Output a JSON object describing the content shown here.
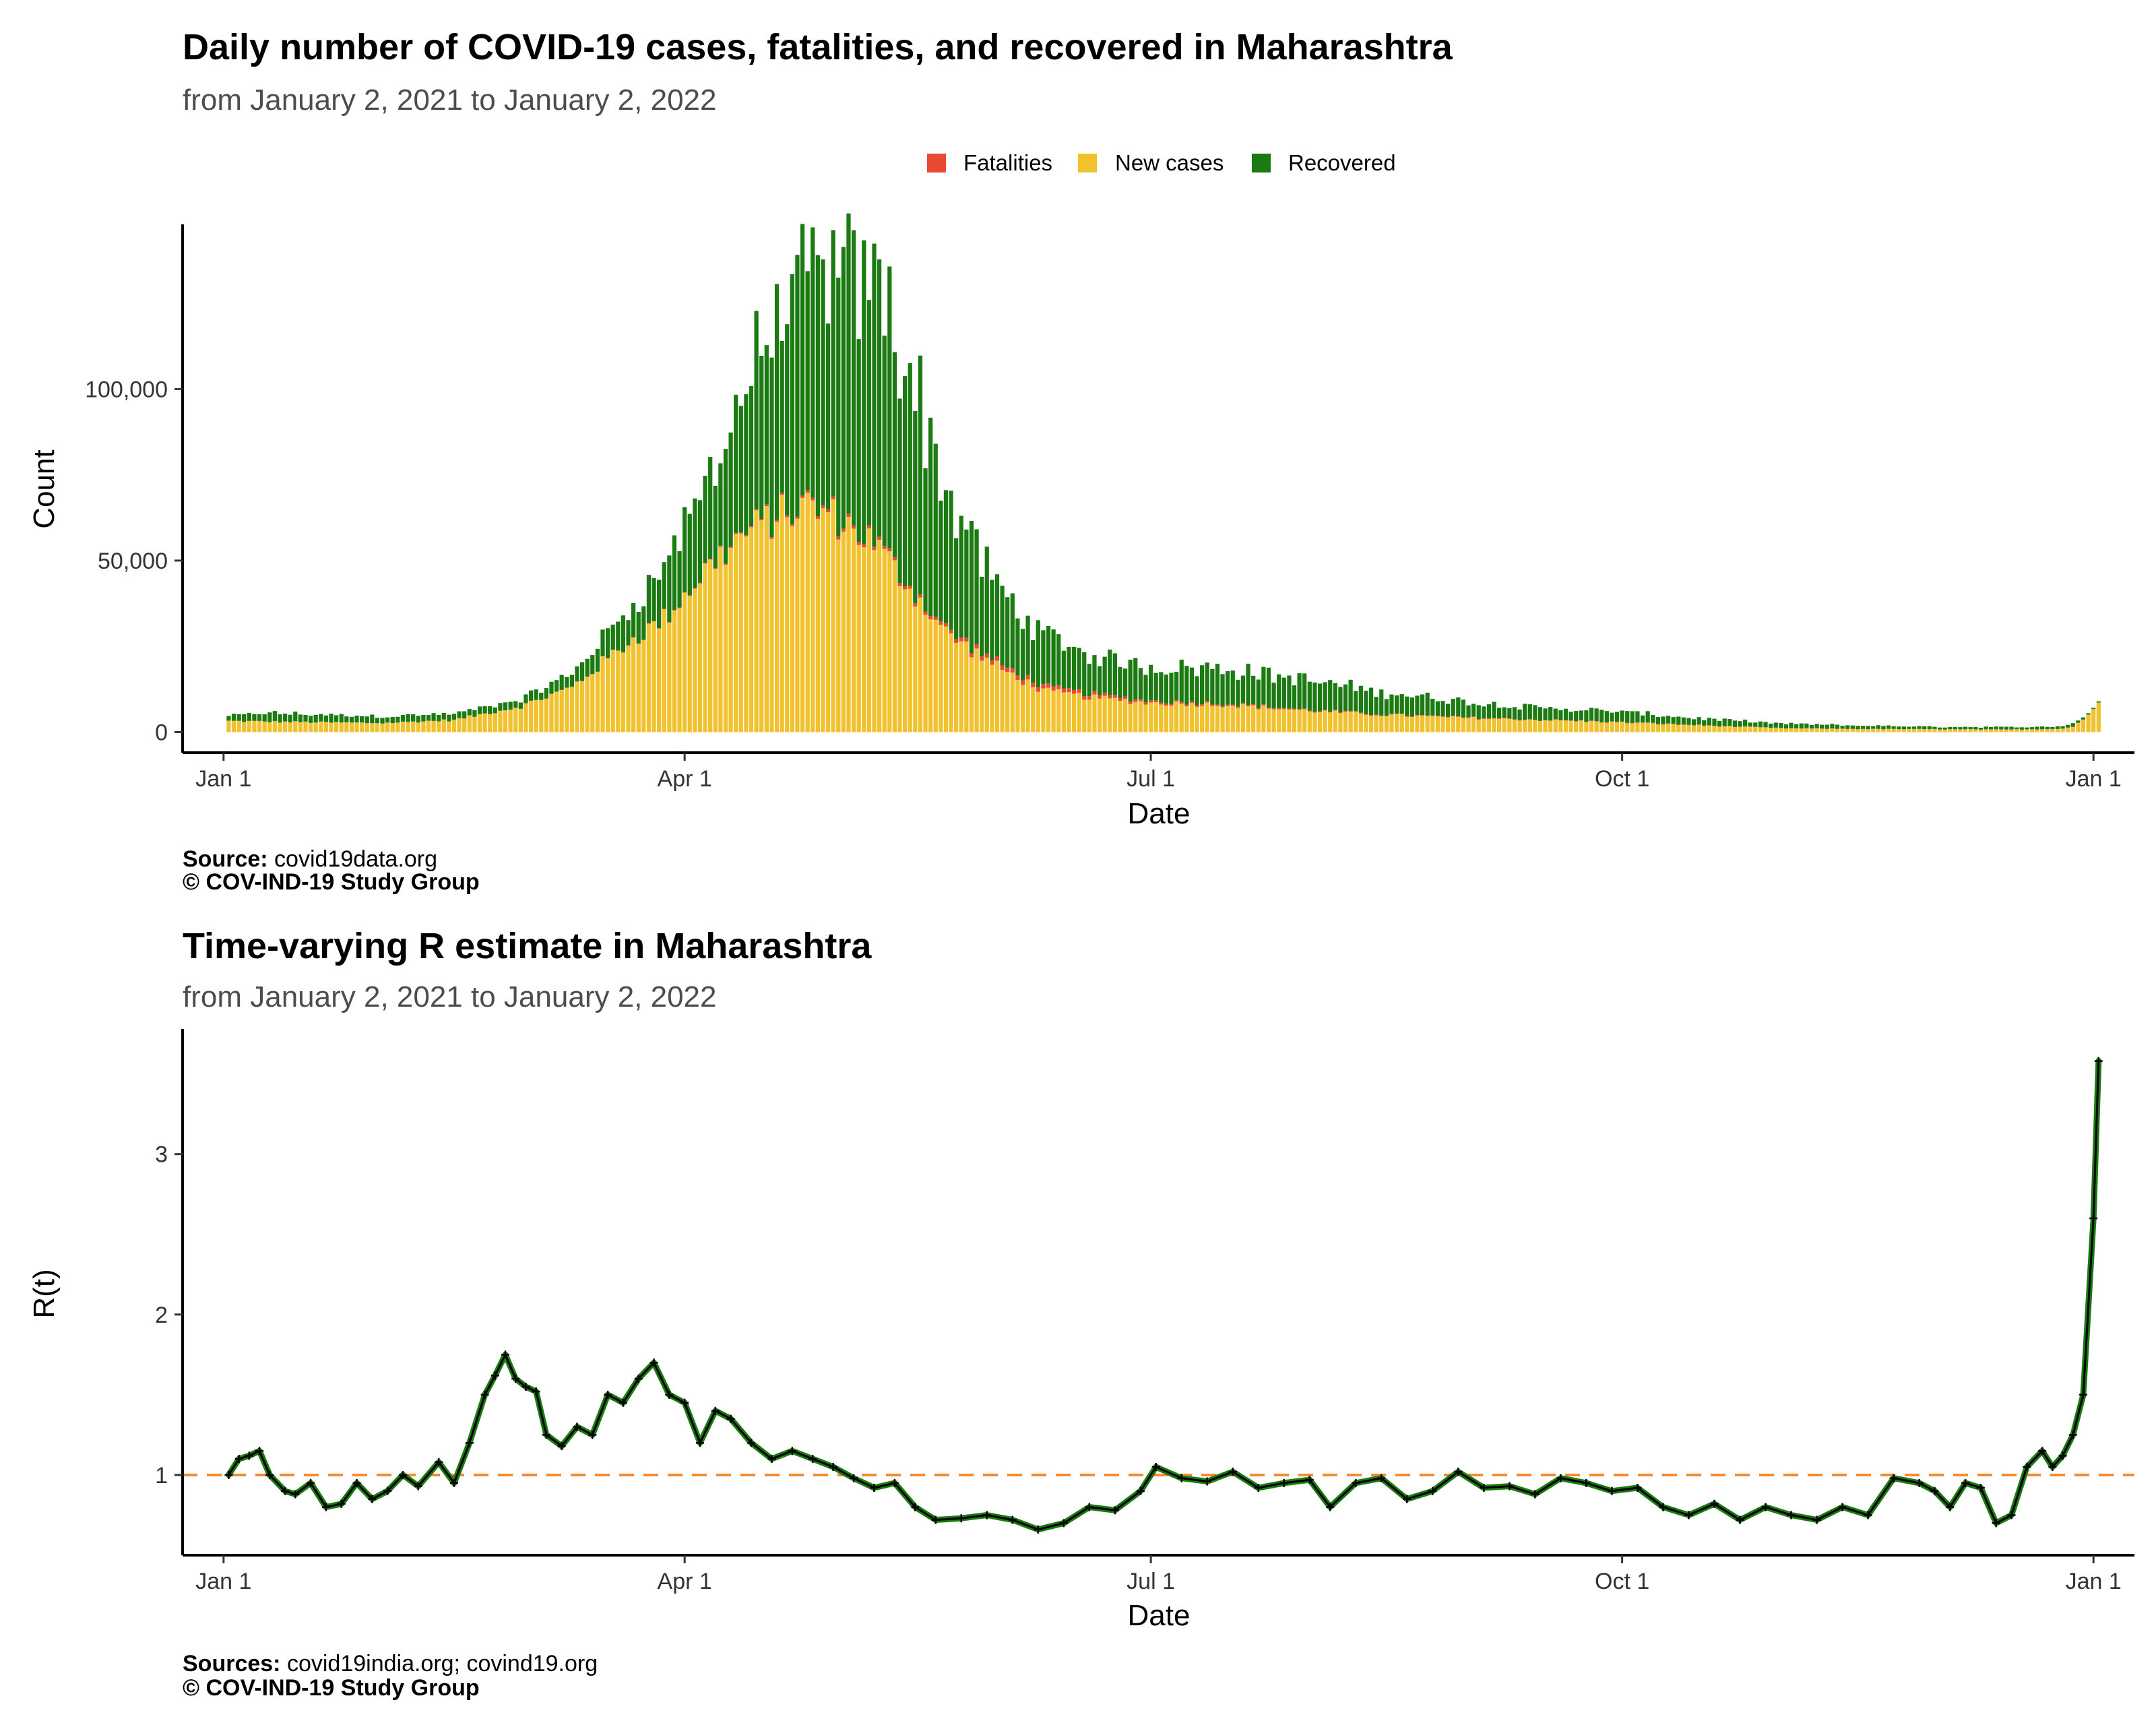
{
  "charts": {
    "cases": {
      "title": "Daily number of COVID-19 cases, fatalities, and recovered in Maharashtra",
      "subtitle": "from January  2, 2021 to January  2, 2022",
      "legend": [
        "Fatalities",
        "New cases",
        "Recovered"
      ],
      "ylabel": "Count",
      "xlabel": "Date",
      "yticks": [
        "0",
        "50,000",
        "100,000"
      ],
      "xticks": [
        "Jan  1",
        "Apr  1",
        "Jul  1",
        "Oct  1",
        "Jan  1"
      ],
      "source_label": "Source:",
      "source_text": " covid19data.org",
      "copyright": "© COV-IND-19 Study Group"
    },
    "r": {
      "title": "Time-varying R estimate in Maharashtra",
      "subtitle": "from January  2, 2021 to January  2, 2022",
      "ylabel": "R(t)",
      "xlabel": "Date",
      "yticks": [
        "1",
        "2",
        "3"
      ],
      "xticks": [
        "Jan  1",
        "Apr  1",
        "Jul  1",
        "Oct  1",
        "Jan  1"
      ],
      "source_label": "Sources:",
      "source_text": " covid19india.org; covind19.org",
      "copyright": "© COV-IND-19 Study Group"
    }
  },
  "colors": {
    "fatalities": "#e84a33",
    "new_cases": "#f2c12e",
    "recovered": "#1b7a12",
    "r_line": "#1b7a12",
    "reference": "#f58a2e"
  },
  "chart_data": [
    {
      "type": "bar",
      "stacked": true,
      "title": "Daily number of COVID-19 cases, fatalities, and recovered in Maharashtra",
      "subtitle": "from January  2, 2021 to January  2, 2022",
      "xlabel": "Date",
      "ylabel": "Count",
      "x_range": [
        "2020-12-24",
        "2022-01-09"
      ],
      "ylim": [
        -6000,
        148000
      ],
      "legend_position": "top",
      "series_names": [
        "Fatalities",
        "New cases",
        "Recovered"
      ],
      "anchors": {
        "x": [
          "2021-01-02",
          "2021-01-10",
          "2021-01-20",
          "2021-02-01",
          "2021-02-15",
          "2021-02-28",
          "2021-03-10",
          "2021-03-20",
          "2021-03-28",
          "2021-04-01",
          "2021-04-05",
          "2021-04-12",
          "2021-04-18",
          "2021-04-25",
          "2021-05-01",
          "2021-05-08",
          "2021-05-15",
          "2021-05-22",
          "2021-06-01",
          "2021-06-10",
          "2021-06-20",
          "2021-07-01",
          "2021-07-15",
          "2021-08-01",
          "2021-08-15",
          "2021-09-01",
          "2021-09-15",
          "2021-10-01",
          "2021-10-15",
          "2021-11-01",
          "2021-11-15",
          "2021-12-01",
          "2021-12-15",
          "2021-12-25",
          "2021-12-28",
          "2021-12-31",
          "2022-01-02"
        ],
        "new_cases": [
          3200,
          3000,
          2800,
          2600,
          3500,
          7500,
          13000,
          25000,
          33000,
          40000,
          47000,
          57000,
          62000,
          66000,
          62000,
          55000,
          42000,
          29000,
          19000,
          12000,
          10000,
          8500,
          8000,
          6200,
          5000,
          4100,
          3500,
          2800,
          2000,
          1100,
          900,
          800,
          700,
          900,
          1500,
          5000,
          9000
        ],
        "recovered": [
          1500,
          2500,
          2200,
          2000,
          1800,
          2000,
          4000,
          9000,
          15000,
          20000,
          25000,
          40000,
          55000,
          65000,
          70000,
          75000,
          65000,
          40000,
          22000,
          15000,
          11000,
          10000,
          10500,
          8500,
          6500,
          4500,
          3500,
          3000,
          2000,
          1300,
          1000,
          700,
          700,
          700,
          1000,
          400,
          300
        ],
        "fatalities": [
          50,
          50,
          40,
          30,
          30,
          40,
          60,
          100,
          150,
          200,
          250,
          300,
          500,
          700,
          900,
          900,
          900,
          1000,
          1300,
          1300,
          1000,
          600,
          400,
          250,
          200,
          150,
          120,
          100,
          80,
          60,
          40,
          30,
          30,
          25,
          20,
          20,
          10
        ]
      }
    },
    {
      "type": "line",
      "title": "Time-varying R estimate in Maharashtra",
      "subtitle": "from January  2, 2021 to January  2, 2022",
      "xlabel": "Date",
      "ylabel": "R(t)",
      "x_range": [
        "2020-12-24",
        "2022-01-09"
      ],
      "ylim": [
        0.5,
        3.78
      ],
      "reference_line": 1,
      "points": {
        "x": [
          "2021-01-02",
          "2021-01-04",
          "2021-01-06",
          "2021-01-08",
          "2021-01-10",
          "2021-01-13",
          "2021-01-15",
          "2021-01-18",
          "2021-01-21",
          "2021-01-24",
          "2021-01-27",
          "2021-01-30",
          "2021-02-02",
          "2021-02-05",
          "2021-02-08",
          "2021-02-12",
          "2021-02-15",
          "2021-02-18",
          "2021-02-21",
          "2021-02-23",
          "2021-02-25",
          "2021-02-27",
          "2021-03-01",
          "2021-03-03",
          "2021-03-05",
          "2021-03-08",
          "2021-03-11",
          "2021-03-14",
          "2021-03-17",
          "2021-03-20",
          "2021-03-23",
          "2021-03-26",
          "2021-03-29",
          "2021-04-01",
          "2021-04-04",
          "2021-04-07",
          "2021-04-10",
          "2021-04-14",
          "2021-04-18",
          "2021-04-22",
          "2021-04-26",
          "2021-04-30",
          "2021-05-04",
          "2021-05-08",
          "2021-05-12",
          "2021-05-16",
          "2021-05-20",
          "2021-05-25",
          "2021-05-30",
          "2021-06-04",
          "2021-06-09",
          "2021-06-14",
          "2021-06-19",
          "2021-06-24",
          "2021-06-29",
          "2021-07-02",
          "2021-07-07",
          "2021-07-12",
          "2021-07-17",
          "2021-07-22",
          "2021-07-27",
          "2021-08-01",
          "2021-08-05",
          "2021-08-10",
          "2021-08-15",
          "2021-08-20",
          "2021-08-25",
          "2021-08-30",
          "2021-09-04",
          "2021-09-09",
          "2021-09-14",
          "2021-09-19",
          "2021-09-24",
          "2021-09-29",
          "2021-10-04",
          "2021-10-09",
          "2021-10-14",
          "2021-10-19",
          "2021-10-24",
          "2021-10-29",
          "2021-11-03",
          "2021-11-08",
          "2021-11-13",
          "2021-11-18",
          "2021-11-23",
          "2021-11-28",
          "2021-12-01",
          "2021-12-04",
          "2021-12-07",
          "2021-12-10",
          "2021-12-13",
          "2021-12-16",
          "2021-12-19",
          "2021-12-22",
          "2021-12-24",
          "2021-12-26",
          "2021-12-28",
          "2021-12-30",
          "2022-01-01",
          "2022-01-02"
        ],
        "r": [
          1.0,
          1.1,
          1.12,
          1.15,
          1.0,
          0.9,
          0.88,
          0.95,
          0.8,
          0.82,
          0.95,
          0.85,
          0.9,
          1.0,
          0.93,
          1.08,
          0.95,
          1.2,
          1.5,
          1.62,
          1.75,
          1.6,
          1.55,
          1.52,
          1.25,
          1.18,
          1.3,
          1.25,
          1.5,
          1.45,
          1.6,
          1.7,
          1.5,
          1.45,
          1.2,
          1.4,
          1.35,
          1.2,
          1.1,
          1.15,
          1.1,
          1.05,
          0.98,
          0.92,
          0.95,
          0.8,
          0.72,
          0.73,
          0.75,
          0.72,
          0.66,
          0.7,
          0.8,
          0.78,
          0.9,
          1.05,
          0.98,
          0.96,
          1.02,
          0.92,
          0.95,
          0.97,
          0.8,
          0.95,
          0.98,
          0.85,
          0.9,
          1.02,
          0.92,
          0.93,
          0.88,
          0.98,
          0.95,
          0.9,
          0.92,
          0.8,
          0.75,
          0.82,
          0.72,
          0.8,
          0.75,
          0.72,
          0.8,
          0.75,
          0.98,
          0.95,
          0.9,
          0.8,
          0.95,
          0.92,
          0.7,
          0.75,
          1.05,
          1.15,
          1.05,
          1.12,
          1.25,
          1.5,
          2.6,
          3.58
        ]
      }
    }
  ]
}
